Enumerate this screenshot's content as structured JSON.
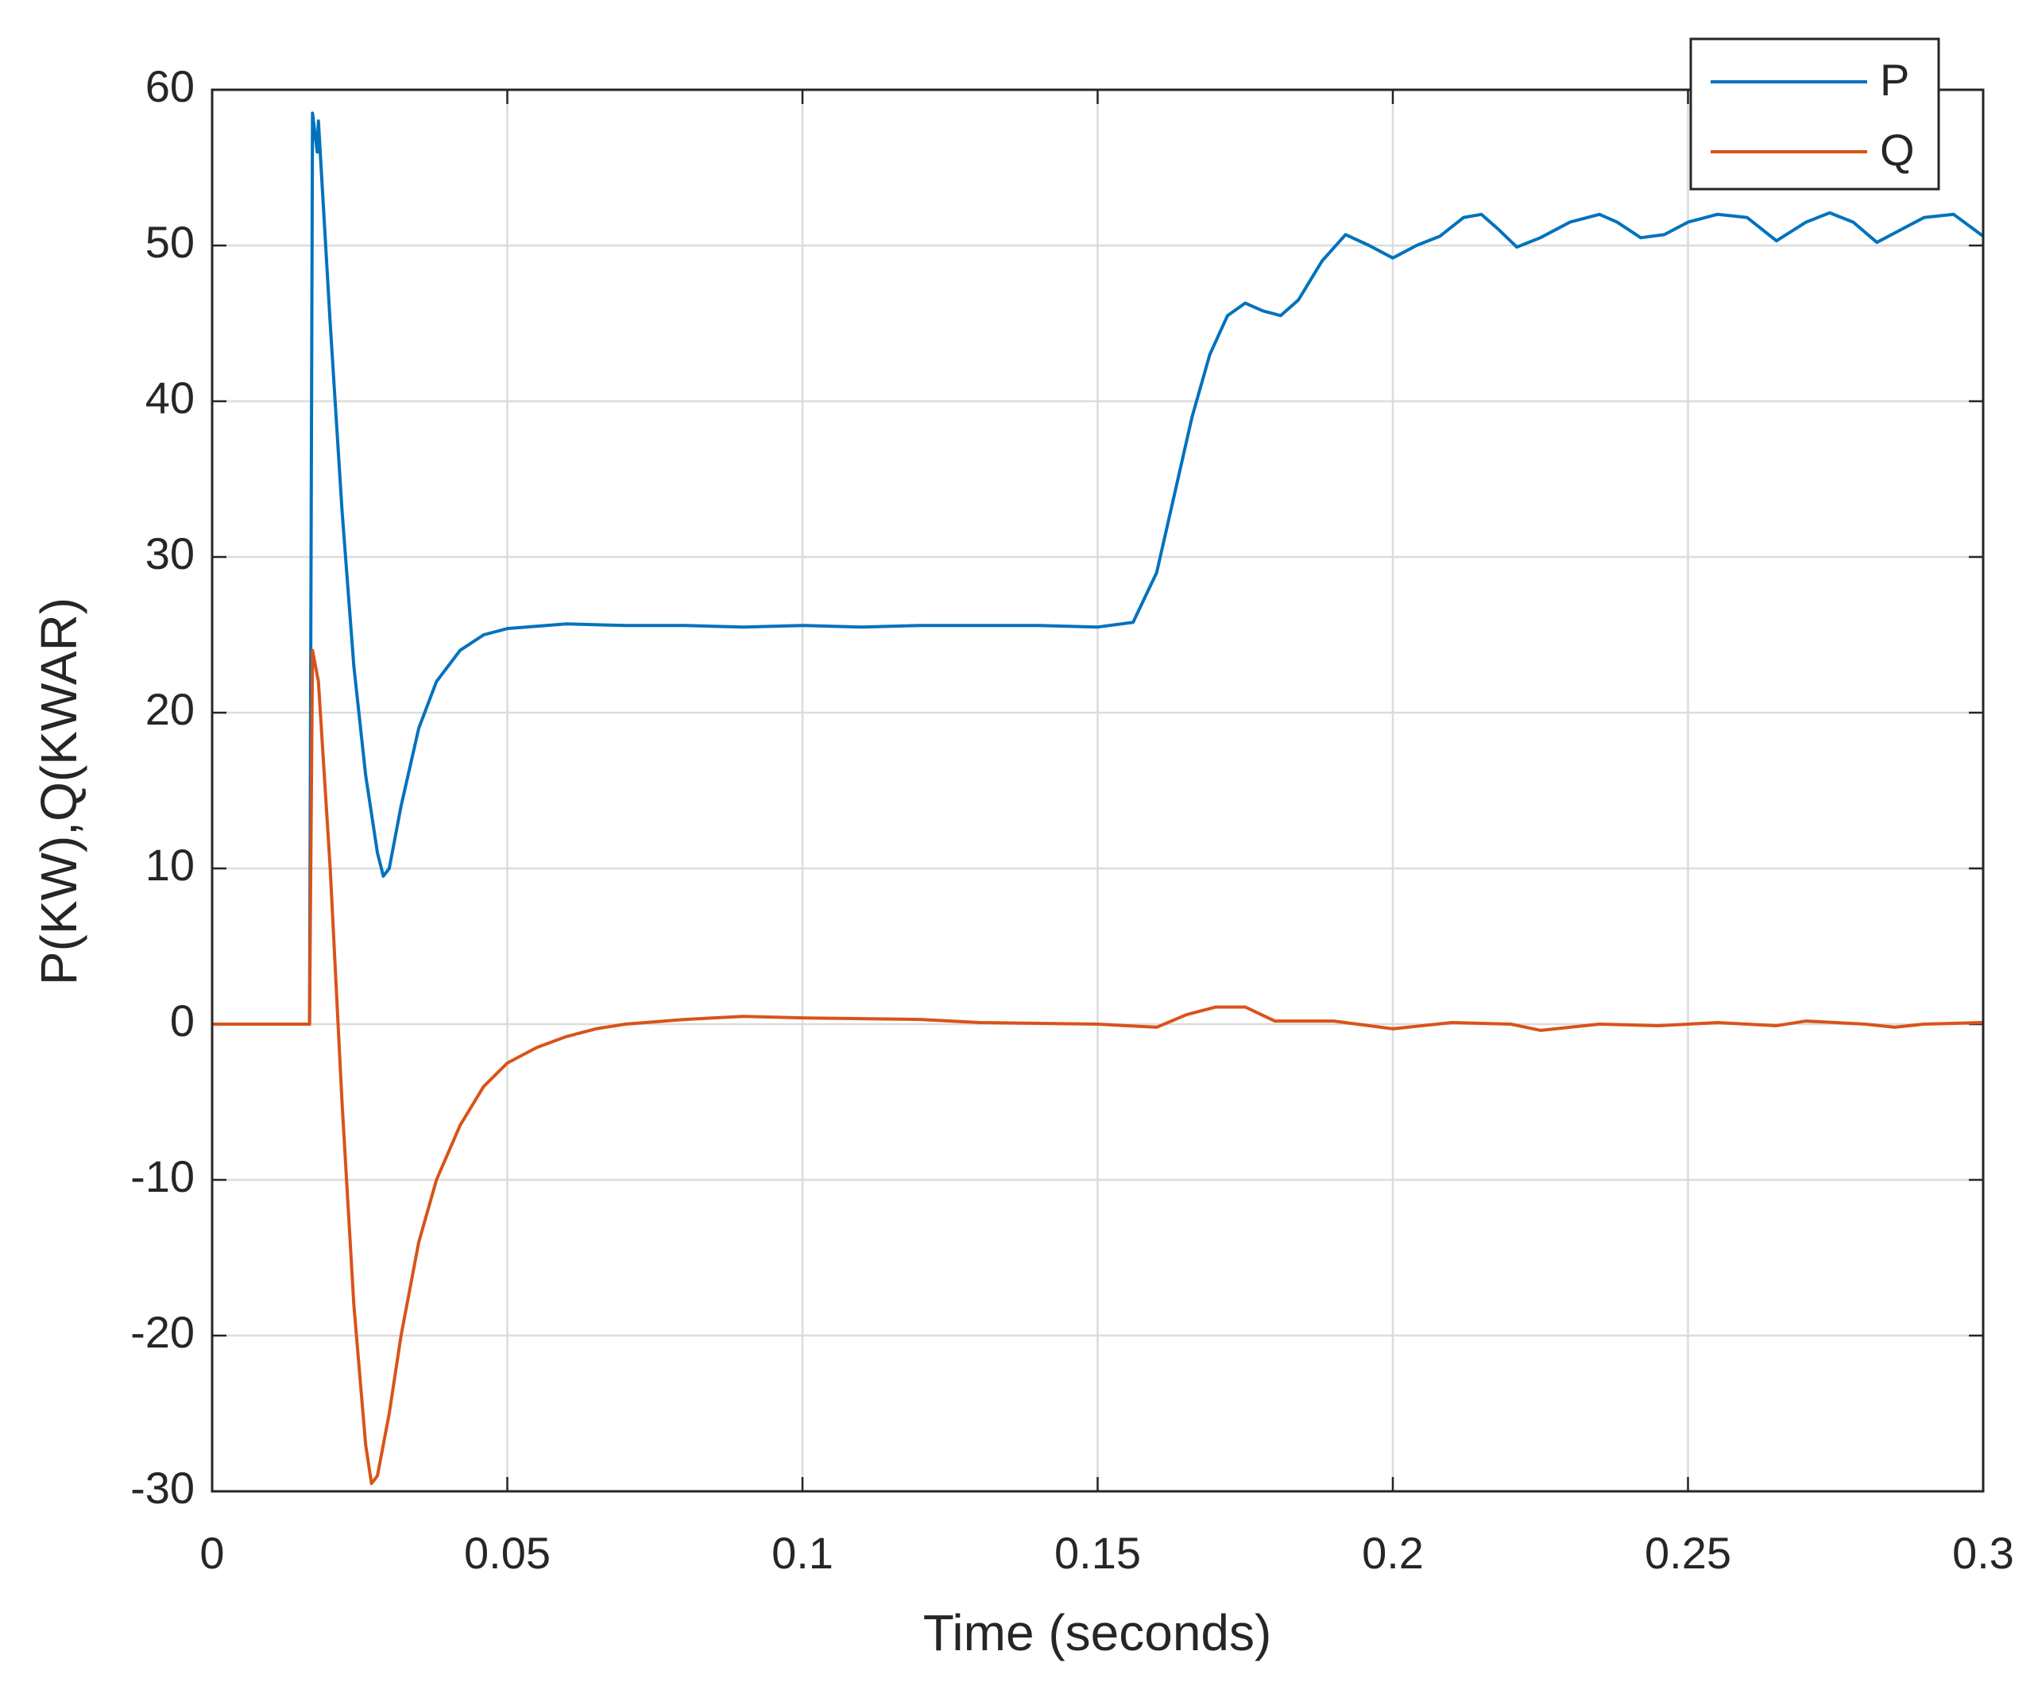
{
  "chart_data": {
    "type": "line",
    "xlabel": "Time (seconds)",
    "ylabel": "P(KW),Q(KWAR)",
    "xlim": [
      0,
      0.3
    ],
    "xticks": [
      0,
      0.05,
      0.1,
      0.15,
      0.2,
      0.25,
      0.3
    ],
    "ylim": [
      -30,
      60
    ],
    "yticks": [
      -30,
      -20,
      -10,
      0,
      10,
      20,
      30,
      40,
      50,
      60
    ],
    "grid": true,
    "legend": "upper right",
    "series": [
      {
        "name": "P",
        "color": "#0072bd",
        "x": [
          0,
          0.0165,
          0.017,
          0.0178,
          0.018,
          0.02,
          0.022,
          0.024,
          0.026,
          0.028,
          0.029,
          0.03,
          0.032,
          0.035,
          0.038,
          0.042,
          0.046,
          0.05,
          0.06,
          0.07,
          0.08,
          0.09,
          0.1,
          0.11,
          0.12,
          0.13,
          0.14,
          0.15,
          0.156,
          0.16,
          0.163,
          0.166,
          0.169,
          0.172,
          0.175,
          0.178,
          0.181,
          0.184,
          0.188,
          0.192,
          0.196,
          0.2,
          0.204,
          0.208,
          0.212,
          0.215,
          0.218,
          0.221,
          0.225,
          0.23,
          0.235,
          0.238,
          0.242,
          0.246,
          0.25,
          0.255,
          0.26,
          0.265,
          0.27,
          0.274,
          0.278,
          0.282,
          0.286,
          0.29,
          0.295,
          0.3
        ],
        "values": [
          0,
          0,
          58.5,
          56,
          58,
          45,
          33,
          23,
          16,
          11,
          9.5,
          10,
          14,
          19,
          22,
          24,
          25,
          25.4,
          25.7,
          25.6,
          25.6,
          25.5,
          25.6,
          25.5,
          25.6,
          25.6,
          25.6,
          25.5,
          25.8,
          29,
          34,
          39,
          43,
          45.5,
          46.3,
          45.8,
          45.5,
          46.5,
          49,
          50.7,
          50,
          49.2,
          50,
          50.6,
          51.8,
          52,
          51,
          49.9,
          50.5,
          51.5,
          52,
          51.5,
          50.5,
          50.7,
          51.5,
          52,
          51.8,
          50.3,
          51.5,
          52.1,
          51.5,
          50.2,
          51,
          51.8,
          52,
          50.6
        ]
      },
      {
        "name": "Q",
        "color": "#d95319",
        "x": [
          0,
          0.0165,
          0.017,
          0.018,
          0.02,
          0.022,
          0.024,
          0.026,
          0.027,
          0.028,
          0.03,
          0.032,
          0.035,
          0.038,
          0.042,
          0.046,
          0.05,
          0.055,
          0.06,
          0.065,
          0.07,
          0.08,
          0.09,
          0.1,
          0.12,
          0.13,
          0.15,
          0.155,
          0.16,
          0.165,
          0.17,
          0.175,
          0.18,
          0.19,
          0.2,
          0.21,
          0.22,
          0.225,
          0.235,
          0.245,
          0.255,
          0.265,
          0.27,
          0.28,
          0.285,
          0.29,
          0.3
        ],
        "values": [
          0,
          0,
          24,
          22,
          10,
          -5,
          -18,
          -27,
          -29.5,
          -29,
          -25,
          -20,
          -14,
          -10,
          -6.5,
          -4,
          -2.5,
          -1.5,
          -0.8,
          -0.3,
          0,
          0.3,
          0.5,
          0.4,
          0.3,
          0.1,
          0,
          -0.1,
          -0.2,
          0.6,
          1.1,
          1.1,
          0.2,
          0.2,
          -0.3,
          0.1,
          0,
          -0.4,
          0,
          -0.1,
          0.1,
          -0.1,
          0.2,
          0,
          -0.2,
          0,
          0.1
        ]
      }
    ]
  }
}
